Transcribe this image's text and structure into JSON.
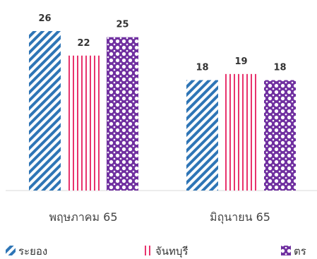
{
  "chart_data": {
    "type": "bar",
    "categories": [
      "พฤษภาคม 65",
      "มิถุนายน 65"
    ],
    "series": [
      {
        "name": "ระยอง",
        "values": [
          26,
          18
        ],
        "color": "#2E75B6",
        "pattern": "diagonal-stripes"
      },
      {
        "name": "จันทบุรี",
        "values": [
          22,
          19
        ],
        "color": "#E8336D",
        "pattern": "vertical-stripes"
      },
      {
        "name": "ตราด",
        "values": [
          25,
          18
        ],
        "color": "#7030A0",
        "pattern": "dots"
      }
    ],
    "legend_visible_text": [
      "ระยอง",
      "จันทบุรี",
      "ตร"
    ],
    "ylim": [
      0,
      26
    ],
    "grid": false,
    "legend_position": "bottom",
    "data_labels": true
  }
}
